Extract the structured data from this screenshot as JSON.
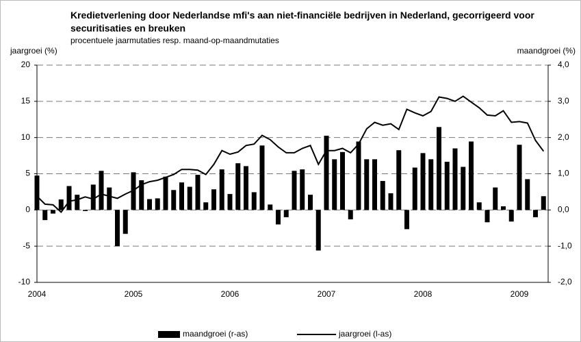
{
  "chart_data": {
    "type": "bar-line",
    "title": "Kredietverlening door Nederlandse mfi's aan niet-financiële bedrijven in Nederland, gecorrigeerd voor securitisaties en breuken",
    "subtitle": "procentuele jaarmutaties resp. maand-op-maandmutaties",
    "y_label": "jaargroei (%)",
    "y2_label": "maandgroei (%)",
    "categories": [
      "2004",
      null,
      null,
      null,
      null,
      null,
      null,
      null,
      null,
      null,
      null,
      null,
      "2005",
      null,
      null,
      null,
      null,
      null,
      null,
      null,
      null,
      null,
      null,
      null,
      "2006",
      null,
      null,
      null,
      null,
      null,
      null,
      null,
      null,
      null,
      null,
      null,
      "2007",
      null,
      null,
      null,
      null,
      null,
      null,
      null,
      null,
      null,
      null,
      null,
      "2008",
      null,
      null,
      null,
      null,
      null,
      null,
      null,
      null,
      null,
      null,
      null,
      "2009",
      null,
      null,
      null
    ],
    "series": [
      {
        "name": "maandgroei (r-as)",
        "color": "#000000",
        "axis": "y2",
        "kind": "bar",
        "values": [
          0.95,
          -0.28,
          -0.1,
          0.29,
          0.66,
          0.42,
          -0.03,
          0.7,
          1.08,
          0.62,
          -1.0,
          -0.66,
          1.04,
          0.82,
          0.3,
          0.32,
          0.92,
          0.55,
          0.76,
          0.64,
          0.97,
          0.21,
          0.57,
          1.12,
          0.44,
          1.29,
          1.21,
          0.49,
          1.78,
          0.15,
          -0.4,
          -0.2,
          1.08,
          1.12,
          0.42,
          -1.12,
          2.05,
          1.4,
          1.6,
          -0.26,
          1.89,
          1.4,
          1.4,
          0.8,
          0.46,
          1.65,
          -0.53,
          1.17,
          1.57,
          1.4,
          2.29,
          1.33,
          1.7,
          1.19,
          1.89,
          0.21,
          -0.34,
          0.62,
          0.1,
          -0.32,
          1.8,
          0.85,
          -0.2,
          0.38
        ]
      },
      {
        "name": "jaargroei (l-as)",
        "color": "#000000",
        "axis": "y",
        "kind": "line",
        "values": [
          1.9,
          0.8,
          0.7,
          -0.3,
          1.2,
          1.4,
          1.8,
          1.5,
          2.2,
          1.9,
          1.6,
          2.2,
          2.7,
          3.5,
          3.9,
          4.1,
          4.5,
          4.9,
          5.6,
          5.6,
          5.5,
          4.9,
          6.3,
          8.2,
          7.7,
          8.0,
          8.9,
          9.1,
          10.3,
          9.7,
          8.7,
          7.9,
          7.9,
          8.5,
          8.9,
          6.3,
          8.2,
          8.2,
          8.5,
          7.9,
          9.1,
          11.2,
          12.1,
          11.7,
          11.9,
          11.1,
          13.9,
          13.4,
          13.0,
          13.6,
          15.6,
          15.4,
          15.0,
          15.7,
          14.9,
          14.1,
          13.1,
          13.0,
          13.7,
          12.1,
          12.2,
          12.0,
          9.6,
          8.1
        ]
      }
    ],
    "ylim": [
      -10,
      20
    ],
    "yticks": [
      -10,
      -5,
      0,
      5,
      10,
      15,
      20
    ],
    "y2lim": [
      -2,
      4
    ],
    "y2ticks": [
      {
        "value": -2,
        "label": "-2,0"
      },
      {
        "value": -1,
        "label": "-1,0"
      },
      {
        "value": 0,
        "label": "0,0"
      },
      {
        "value": 1,
        "label": "1,0"
      },
      {
        "value": 2,
        "label": "2,0"
      },
      {
        "value": 3,
        "label": "3,0"
      },
      {
        "value": 4,
        "label": "4,0"
      }
    ],
    "grid": true,
    "legend": "bottom"
  }
}
